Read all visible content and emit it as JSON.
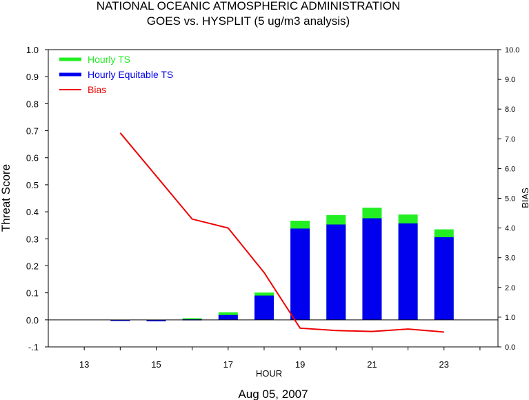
{
  "colors": {
    "hourly_ts": "#22ee22",
    "equitable_ts": "#0000ee",
    "bias": "#ee0000",
    "axis": "#000000"
  },
  "chart_data": {
    "type": "bar",
    "title": "NATIONAL OCEANIC ATMOSPHERIC ADMINISTRATION",
    "subtitle": "GOES vs. HYSPLIT  (5 ug/m3 analysis)",
    "xlabel": "HOUR",
    "ylabel": "Threat Score",
    "y2label": "BIAS",
    "date_label": "Aug 05, 2007",
    "xlim": [
      12,
      24.5
    ],
    "ylim": [
      -0.1,
      1.0
    ],
    "y2lim": [
      0.0,
      10.0
    ],
    "x_ticks": [
      13,
      15,
      17,
      19,
      21,
      23
    ],
    "x_minor_ticks": [
      14,
      16,
      18,
      20,
      22,
      24
    ],
    "x_tick_labels": [
      "13",
      "15",
      "17",
      "19",
      "21",
      "23"
    ],
    "y_ticks": [
      -0.1,
      0.0,
      0.1,
      0.2,
      0.3,
      0.4,
      0.5,
      0.6,
      0.7,
      0.8,
      0.9,
      1.0
    ],
    "y_tick_labels": [
      "-.1",
      "0.0",
      "0.1",
      "0.2",
      "0.3",
      "0.4",
      "0.5",
      "0.6",
      "0.7",
      "0.8",
      "0.9",
      "1.0"
    ],
    "y2_ticks": [
      0.0,
      1.0,
      2.0,
      3.0,
      4.0,
      5.0,
      6.0,
      7.0,
      8.0,
      9.0,
      10.0
    ],
    "y2_tick_labels": [
      "0.0",
      "1.0",
      "2.0",
      "3.0",
      "4.0",
      "5.0",
      "6.0",
      "7.0",
      "8.0",
      "9.0",
      "10.0"
    ],
    "grid": false,
    "legend_position": "top-left",
    "x": [
      14,
      15,
      16,
      17,
      18,
      19,
      20,
      21,
      22,
      23
    ],
    "series": [
      {
        "name": "Hourly TS",
        "type": "bar",
        "axis": "left",
        "values": [
          -0.003,
          -0.005,
          0.006,
          0.028,
          0.101,
          0.367,
          0.388,
          0.415,
          0.39,
          0.335
        ]
      },
      {
        "name": "Hourly Equitable TS",
        "type": "bar",
        "axis": "left",
        "values": [
          -0.003,
          -0.005,
          0.002,
          0.018,
          0.09,
          0.338,
          0.353,
          0.376,
          0.357,
          0.306
        ]
      },
      {
        "name": "Bias",
        "type": "line",
        "axis": "right",
        "values": [
          7.2,
          5.75,
          4.3,
          4.0,
          2.5,
          0.63,
          0.55,
          0.52,
          0.6,
          0.5
        ]
      }
    ]
  }
}
